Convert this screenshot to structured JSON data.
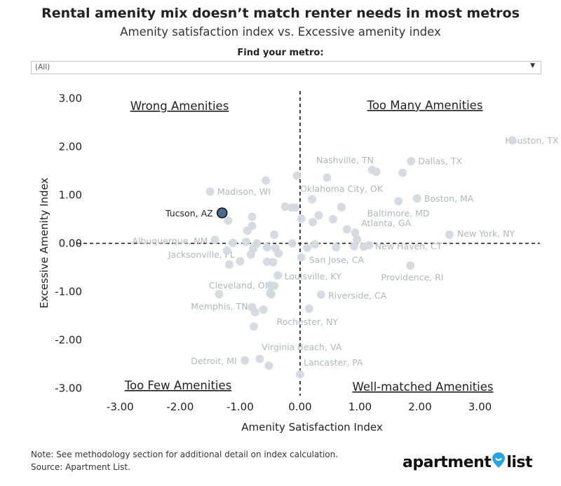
{
  "title": "Rental amenity mix doesn’t match renter needs in most metros",
  "subtitle": "Amenity satisfaction index vs. Excessive amenity index",
  "filter": {
    "label": "Find your metro:",
    "value": "(All)"
  },
  "note": "Note: See methodology section for additional detail on index calculation.",
  "source": "Source: Apartment List.",
  "brand": {
    "left": "apartment",
    "right": "list",
    "pin_color": "#29a4dc"
  },
  "colors": {
    "point": "#d3d9df",
    "highlight_fill": "#4a6a93",
    "highlight_stroke": "#111111",
    "label": "#b0b6bd"
  },
  "chart_data": {
    "type": "scatter",
    "xlabel": "Amenity Satisfaction Index",
    "ylabel": "Excessive Amenity Index",
    "xlim": [
      -3.6,
      4.0
    ],
    "ylim": [
      -3.15,
      3.15
    ],
    "xticks": [
      -3,
      -2,
      -1,
      0,
      1,
      2,
      3
    ],
    "xtick_labels": [
      "-3.00",
      "-2.00",
      "-1.00",
      "0.00",
      "1.00",
      "2.00",
      "3.00"
    ],
    "yticks": [
      3,
      2,
      1,
      0,
      -1,
      -2,
      -3
    ],
    "ytick_labels": [
      "3.00",
      "2.00",
      "1.00",
      "0.00",
      "-1.00",
      "-2.00",
      "-3.00"
    ],
    "grid": false,
    "quadrant_labels": {
      "top_left": "Wrong Amenities",
      "top_right": "Too Many Amenities",
      "bottom_left": "Too Few Amenities",
      "bottom_right": "Well-matched Amenities"
    },
    "highlight": {
      "label": "Tucson, AZ",
      "x": -1.3,
      "y": 0.63
    },
    "points": [
      {
        "x": 3.54,
        "y": 2.13,
        "label": "Houston, TX"
      },
      {
        "x": 1.85,
        "y": 1.7,
        "label": "Dallas, TX"
      },
      {
        "x": 1.2,
        "y": 1.52,
        "label": "Nashville, TN"
      },
      {
        "x": 0.45,
        "y": 1.36,
        "label": ""
      },
      {
        "x": 1.27,
        "y": 1.48,
        "label": ""
      },
      {
        "x": 1.71,
        "y": 1.46,
        "label": ""
      },
      {
        "x": -0.05,
        "y": 1.4,
        "label": ""
      },
      {
        "x": 0.2,
        "y": 0.91,
        "label": "Oklahoma City, OK"
      },
      {
        "x": -0.57,
        "y": 1.3,
        "label": ""
      },
      {
        "x": -1.5,
        "y": 1.07,
        "label": "Madison, WI"
      },
      {
        "x": 1.95,
        "y": 0.93,
        "label": "Boston, MA"
      },
      {
        "x": 1.64,
        "y": 0.87,
        "label": ""
      },
      {
        "x": 0.69,
        "y": 0.75,
        "label": ""
      },
      {
        "x": 0.31,
        "y": 0.58,
        "label": ""
      },
      {
        "x": 0.55,
        "y": 0.5,
        "label": "Baltimore, MD"
      },
      {
        "x": 0.21,
        "y": 0.44,
        "label": "Atlanta, GA"
      },
      {
        "x": -0.25,
        "y": 0.76,
        "label": ""
      },
      {
        "x": -0.14,
        "y": 0.74,
        "label": ""
      },
      {
        "x": -0.08,
        "y": 0.74,
        "label": ""
      },
      {
        "x": -1.2,
        "y": 0.47,
        "label": ""
      },
      {
        "x": -0.8,
        "y": 0.55,
        "label": ""
      },
      {
        "x": 0.02,
        "y": 0.51,
        "label": ""
      },
      {
        "x": -0.8,
        "y": 0.36,
        "label": ""
      },
      {
        "x": -0.88,
        "y": 0.26,
        "label": ""
      },
      {
        "x": 0.78,
        "y": 0.29,
        "label": ""
      },
      {
        "x": 2.49,
        "y": 0.18,
        "label": "New York, NY"
      },
      {
        "x": 0.92,
        "y": 0.22,
        "label": ""
      },
      {
        "x": 0.95,
        "y": 0.08,
        "label": ""
      },
      {
        "x": -0.43,
        "y": 0.18,
        "label": ""
      },
      {
        "x": -1.42,
        "y": 0.07,
        "label": "Albuquerque, NM"
      },
      {
        "x": -1.12,
        "y": 0.01,
        "label": ""
      },
      {
        "x": -0.9,
        "y": 0.03,
        "label": ""
      },
      {
        "x": -0.72,
        "y": 0.0,
        "label": ""
      },
      {
        "x": -0.13,
        "y": 0.0,
        "label": ""
      },
      {
        "x": 0.25,
        "y": -0.02,
        "label": ""
      },
      {
        "x": 1.15,
        "y": -0.04,
        "label": "New Haven, CT"
      },
      {
        "x": 0.9,
        "y": -0.06,
        "label": ""
      },
      {
        "x": 1.06,
        "y": -0.07,
        "label": ""
      },
      {
        "x": 0.6,
        "y": -0.08,
        "label": ""
      },
      {
        "x": 0.12,
        "y": -0.09,
        "label": ""
      },
      {
        "x": -0.55,
        "y": -0.08,
        "label": ""
      },
      {
        "x": -0.41,
        "y": -0.1,
        "label": ""
      },
      {
        "x": -0.78,
        "y": -0.11,
        "label": ""
      },
      {
        "x": -1.22,
        "y": -0.15,
        "label": "Jacksonville, FL"
      },
      {
        "x": -0.82,
        "y": -0.23,
        "label": ""
      },
      {
        "x": -0.36,
        "y": -0.21,
        "label": ""
      },
      {
        "x": 0.02,
        "y": -0.29,
        "label": "San Jose, CA"
      },
      {
        "x": -1.0,
        "y": -0.37,
        "label": ""
      },
      {
        "x": -0.55,
        "y": -0.38,
        "label": ""
      },
      {
        "x": -0.45,
        "y": -0.39,
        "label": ""
      },
      {
        "x": -1.18,
        "y": -0.44,
        "label": ""
      },
      {
        "x": 1.84,
        "y": -0.46,
        "label": "Providence, RI"
      },
      {
        "x": -0.37,
        "y": -0.66,
        "label": "Louisville, KY"
      },
      {
        "x": -0.5,
        "y": -0.87,
        "label": "Cleveland, OH"
      },
      {
        "x": -0.43,
        "y": -0.88,
        "label": ""
      },
      {
        "x": -1.35,
        "y": -1.05,
        "label": ""
      },
      {
        "x": -0.5,
        "y": -1.03,
        "label": ""
      },
      {
        "x": -0.48,
        "y": -1.05,
        "label": ""
      },
      {
        "x": 0.35,
        "y": -1.06,
        "label": "Riverside, CA"
      },
      {
        "x": -0.8,
        "y": -1.32,
        "label": "Memphis, TN"
      },
      {
        "x": -0.61,
        "y": -1.37,
        "label": ""
      },
      {
        "x": 0.15,
        "y": -1.35,
        "label": ""
      },
      {
        "x": -0.75,
        "y": -1.42,
        "label": "Rochester, NY"
      },
      {
        "x": -0.77,
        "y": -1.72,
        "label": ""
      },
      {
        "x": -0.67,
        "y": -2.39,
        "label": "Virginia Beach, VA"
      },
      {
        "x": -0.92,
        "y": -2.42,
        "label": "Detroit, MI"
      },
      {
        "x": -0.52,
        "y": -2.53,
        "label": ""
      },
      {
        "x": 0.0,
        "y": -2.71,
        "label": "Lancaster, PA"
      }
    ],
    "labels": [
      {
        "text": "Houston, TX",
        "x": 3.42,
        "y": 2.13
      },
      {
        "text": "Dallas, TX",
        "x": 1.97,
        "y": 1.7
      },
      {
        "text": "Nashville, TN",
        "x": 0.27,
        "y": 1.72
      },
      {
        "text": "Madison, WI",
        "x": -1.38,
        "y": 1.07
      },
      {
        "text": "Oklahoma City, OK",
        "x": 0.0,
        "y": 1.13
      },
      {
        "text": "Boston, MA",
        "x": 2.07,
        "y": 0.93
      },
      {
        "text": "Baltimore, MD",
        "x": 1.12,
        "y": 0.62
      },
      {
        "text": "Atlanta, GA",
        "x": 1.02,
        "y": 0.42
      },
      {
        "text": "New York, NY",
        "x": 2.62,
        "y": 0.2
      },
      {
        "text": "Albuquerque, NM",
        "x": -2.8,
        "y": 0.05
      },
      {
        "text": "New Haven, CT",
        "x": 1.25,
        "y": -0.06
      },
      {
        "text": "Jacksonville, FL",
        "x": -2.2,
        "y": -0.23
      },
      {
        "text": "San Jose, CA",
        "x": 0.15,
        "y": -0.34
      },
      {
        "text": "Providence, RI",
        "x": 1.35,
        "y": -0.7
      },
      {
        "text": "Louisville, KY",
        "x": -0.26,
        "y": -0.68
      },
      {
        "text": "Cleveland, OH",
        "x": -1.52,
        "y": -0.87
      },
      {
        "text": "Riverside, CA",
        "x": 0.47,
        "y": -1.08
      },
      {
        "text": "Memphis, TN",
        "x": -1.82,
        "y": -1.3
      },
      {
        "text": "Rochester, NY",
        "x": -0.39,
        "y": -1.62
      },
      {
        "text": "Virginia Beach, VA",
        "x": -0.64,
        "y": -2.14
      },
      {
        "text": "Detroit, MI",
        "x": -1.82,
        "y": -2.43
      },
      {
        "text": "Lancaster, PA",
        "x": 0.06,
        "y": -2.46
      }
    ]
  }
}
